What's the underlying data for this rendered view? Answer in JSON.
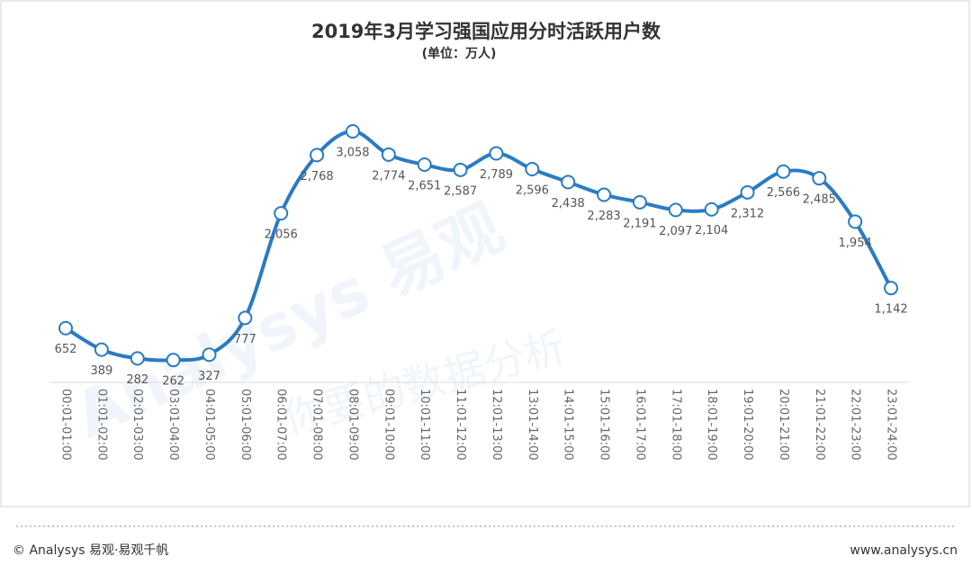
{
  "chart_data": {
    "type": "line",
    "title": "2019年3月学习强国应用分时活跃用户数",
    "subtitle": "(单位：万人)",
    "categories": [
      "00:01-01:00",
      "01:01-02:00",
      "02:01-03:00",
      "03:01-04:00",
      "04:01-05:00",
      "05:01-06:00",
      "06:01-07:00",
      "07:01-08:00",
      "08:01-09:00",
      "09:01-10:00",
      "10:01-11:00",
      "11:01-12:00",
      "12:01-13:00",
      "13:01-14:00",
      "14:01-15:00",
      "15:01-16:00",
      "16:01-17:00",
      "17:01-18:00",
      "18:01-19:00",
      "19:01-20:00",
      "20:01-21:00",
      "21:01-22:00",
      "22:01-23:00",
      "23:01-24:00"
    ],
    "values": [
      652,
      389,
      282,
      262,
      327,
      777,
      2056,
      2768,
      3058,
      2774,
      2651,
      2587,
      2789,
      2596,
      2438,
      2283,
      2191,
      2097,
      2104,
      2312,
      2566,
      2485,
      1954,
      1142
    ],
    "value_labels": [
      "652",
      "389",
      "282",
      "262",
      "327",
      "777",
      "2,056",
      "2,768",
      "3,058",
      "2,774",
      "2,651",
      "2,587",
      "2,789",
      "2,596",
      "2,438",
      "2,283",
      "2,191",
      "2,097",
      "2,104",
      "2,312",
      "2,566",
      "2,485",
      "1,954",
      "1,142"
    ],
    "color": "#2a7bc3"
  },
  "watermark": [
    "Analysys 易观",
    "你要的数据分析"
  ],
  "footer": {
    "left": "© Analysys 易观·易观千帆",
    "right": "www.analysys.cn"
  }
}
